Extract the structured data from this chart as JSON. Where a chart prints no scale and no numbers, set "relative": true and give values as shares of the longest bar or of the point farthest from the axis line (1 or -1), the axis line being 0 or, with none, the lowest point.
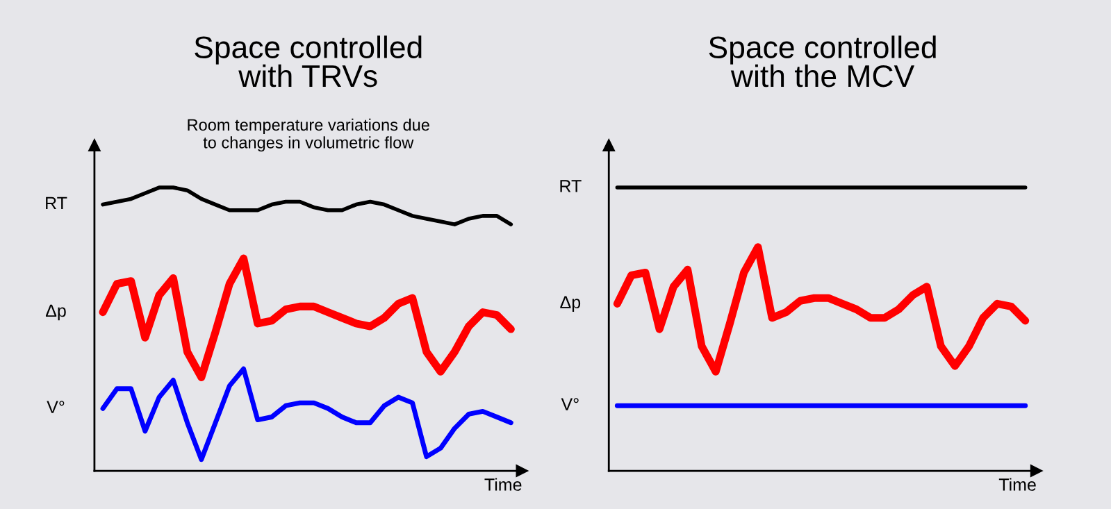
{
  "chart_data": [
    {
      "type": "line",
      "title": "Space controlled\nwith TRVs",
      "subtitle": "Room temperature variations due\nto changes in volumetric flow",
      "xlabel": "Time",
      "relative": true,
      "categories": [
        null,
        null,
        null,
        null,
        null,
        null,
        null,
        null,
        null,
        null,
        null,
        null,
        null,
        null,
        null,
        null,
        null,
        null,
        null,
        null,
        null,
        null,
        null,
        null,
        null,
        null,
        null,
        null,
        null,
        null
      ],
      "series": [
        {
          "name": "RT",
          "color": "#000000",
          "values": [
            0.94,
            0.95,
            0.96,
            0.98,
            1.0,
            1.0,
            0.99,
            0.96,
            0.94,
            0.92,
            0.92,
            0.92,
            0.94,
            0.95,
            0.95,
            0.93,
            0.92,
            0.92,
            0.94,
            0.95,
            0.94,
            0.92,
            0.9,
            0.89,
            0.88,
            0.87,
            0.89,
            0.9,
            0.9,
            0.87
          ]
        },
        {
          "name": "Δp",
          "color": "#ff0000",
          "values": [
            0.56,
            0.66,
            0.67,
            0.47,
            0.62,
            0.68,
            0.42,
            0.33,
            0.49,
            0.66,
            0.75,
            0.52,
            0.53,
            0.57,
            0.58,
            0.58,
            0.56,
            0.54,
            0.52,
            0.51,
            0.54,
            0.59,
            0.61,
            0.42,
            0.35,
            0.42,
            0.51,
            0.56,
            0.55,
            0.5
          ]
        },
        {
          "name": "V°",
          "color": "#0000ff",
          "values": [
            0.22,
            0.29,
            0.29,
            0.14,
            0.26,
            0.32,
            0.17,
            0.04,
            0.17,
            0.3,
            0.36,
            0.18,
            0.19,
            0.23,
            0.24,
            0.24,
            0.22,
            0.19,
            0.17,
            0.17,
            0.23,
            0.26,
            0.24,
            0.05,
            0.08,
            0.15,
            0.2,
            0.21,
            0.19,
            0.17
          ]
        }
      ]
    },
    {
      "type": "line",
      "title": "Space controlled\nwith the MCV",
      "xlabel": "Time",
      "relative": true,
      "categories": [
        null,
        null,
        null,
        null,
        null,
        null,
        null,
        null,
        null,
        null,
        null,
        null,
        null,
        null,
        null,
        null,
        null,
        null,
        null,
        null,
        null,
        null,
        null,
        null,
        null,
        null,
        null,
        null,
        null,
        null
      ],
      "series": [
        {
          "name": "RT",
          "color": "#000000",
          "values": [
            1.0,
            1.0,
            1.0,
            1.0,
            1.0,
            1.0,
            1.0,
            1.0,
            1.0,
            1.0,
            1.0,
            1.0,
            1.0,
            1.0,
            1.0,
            1.0,
            1.0,
            1.0,
            1.0,
            1.0,
            1.0,
            1.0,
            1.0,
            1.0,
            1.0,
            1.0,
            1.0,
            1.0,
            1.0,
            1.0
          ]
        },
        {
          "name": "Δp",
          "color": "#ff0000",
          "values": [
            0.59,
            0.69,
            0.7,
            0.5,
            0.65,
            0.71,
            0.44,
            0.35,
            0.52,
            0.7,
            0.79,
            0.54,
            0.56,
            0.6,
            0.61,
            0.61,
            0.59,
            0.57,
            0.54,
            0.54,
            0.57,
            0.62,
            0.65,
            0.44,
            0.37,
            0.44,
            0.54,
            0.59,
            0.58,
            0.53
          ]
        },
        {
          "name": "V°",
          "color": "#0000ff",
          "values": [
            0.23,
            0.23,
            0.23,
            0.23,
            0.23,
            0.23,
            0.23,
            0.23,
            0.23,
            0.23,
            0.23,
            0.23,
            0.23,
            0.23,
            0.23,
            0.23,
            0.23,
            0.23,
            0.23,
            0.23,
            0.23,
            0.23,
            0.23,
            0.23,
            0.23,
            0.23,
            0.23,
            0.23,
            0.23,
            0.23
          ]
        }
      ]
    }
  ]
}
